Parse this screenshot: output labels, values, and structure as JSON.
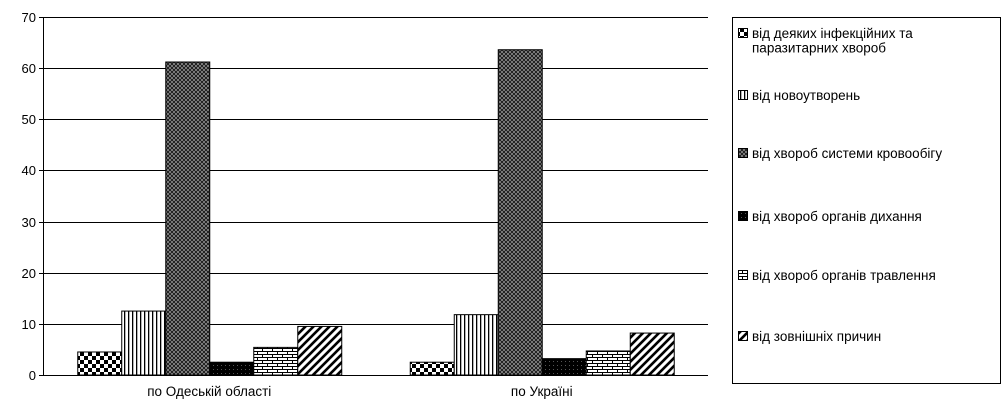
{
  "chart_data": {
    "type": "bar",
    "categories": [
      "по Одеській області",
      "по Україні"
    ],
    "series": [
      {
        "name": "від деяких інфекційних та паразитарних хвороб",
        "values": [
          4.5,
          2.5
        ],
        "pattern": "checker"
      },
      {
        "name": "від новоутворень",
        "values": [
          12.5,
          11.8
        ],
        "pattern": "vertical"
      },
      {
        "name": "від хвороб системи кровообігу",
        "values": [
          61.2,
          63.6
        ],
        "pattern": "crosshatch"
      },
      {
        "name": "від хвороб органів дихання",
        "values": [
          2.5,
          3.2
        ],
        "pattern": "dark"
      },
      {
        "name": "від хвороб органів травлення",
        "values": [
          5.4,
          4.7
        ],
        "pattern": "brick"
      },
      {
        "name": "від зовнішніх причин",
        "values": [
          9.5,
          8.2
        ],
        "pattern": "diagonal"
      }
    ],
    "ylim": [
      0,
      70
    ],
    "yticks": [
      0,
      10,
      20,
      30,
      40,
      50,
      60,
      70
    ],
    "grid": true,
    "legend_position": "right",
    "title": "",
    "xlabel": "",
    "ylabel": ""
  }
}
